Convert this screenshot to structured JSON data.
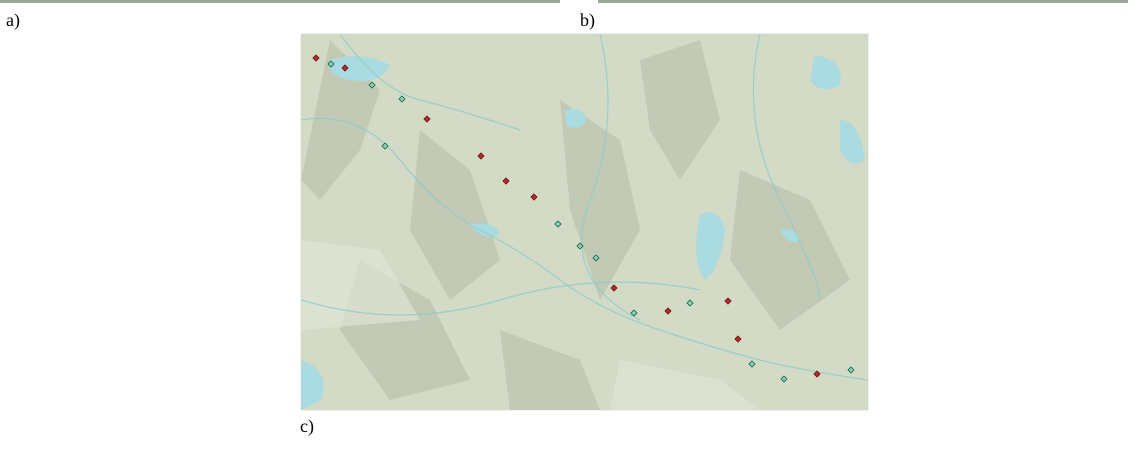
{
  "panels": {
    "a": "a)",
    "b": "b)",
    "c": "c)"
  }
}
